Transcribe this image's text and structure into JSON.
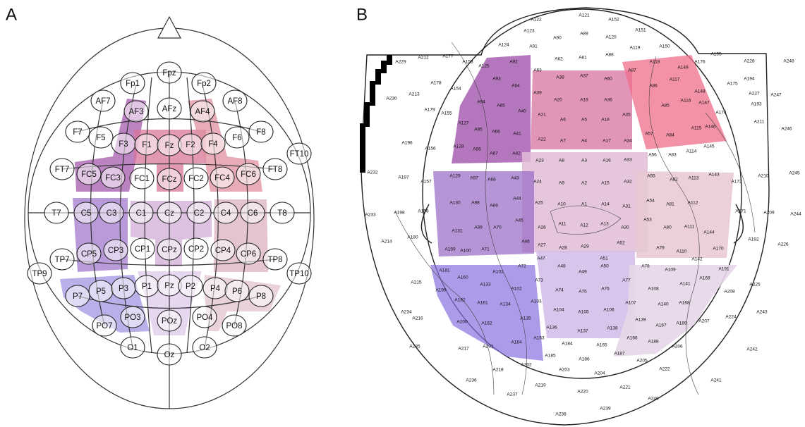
{
  "panel_a": {
    "label": "A",
    "electrodes": [
      "Fp1",
      "Fpz",
      "Fp2",
      "AF7",
      "AFz",
      "AF8",
      "AF3",
      "AF4",
      "F7",
      "F5",
      "F3",
      "F1",
      "Fz",
      "F2",
      "F4",
      "F6",
      "F8",
      "FT7",
      "FC5",
      "FC3",
      "FC1",
      "FCz",
      "FC2",
      "FC4",
      "FC6",
      "FT8",
      "FT10",
      "T7",
      "C5",
      "C3",
      "C1",
      "Cz",
      "C2",
      "C4",
      "C6",
      "T8",
      "TP7",
      "CP5",
      "CP3",
      "CP1",
      "CPz",
      "CP2",
      "CP4",
      "CP6",
      "TP8",
      "TP9",
      "TP10",
      "P7",
      "P5",
      "P3",
      "P1",
      "Pz",
      "P2",
      "P4",
      "P6",
      "P8",
      "PO7",
      "PO3",
      "POz",
      "PO4",
      "PO8",
      "O1",
      "Oz",
      "O2"
    ]
  },
  "panel_b": {
    "label": "B",
    "electrodes": [
      "A122",
      "A121",
      "A152",
      "A151",
      "A123",
      "A90",
      "A89",
      "A120",
      "A150",
      "A124",
      "A91",
      "A119",
      "A195",
      "A228",
      "A248",
      "A229",
      "A212",
      "A177",
      "A153",
      "A125",
      "A92",
      "A63",
      "A62",
      "A61",
      "A88",
      "A118",
      "A149",
      "A176",
      "A93",
      "A64",
      "A39",
      "A38",
      "A37",
      "A60",
      "A87",
      "A117",
      "A175",
      "A194",
      "A227",
      "A247",
      "A178",
      "A154",
      "A20",
      "A19",
      "A36",
      "A86",
      "A148",
      "A193",
      "A230",
      "A213",
      "A179",
      "A155",
      "A94",
      "A65",
      "A40",
      "A21",
      "A6",
      "A5",
      "A18",
      "A35",
      "A85",
      "A116",
      "A147",
      "A174",
      "A127",
      "A95",
      "A66",
      "A41",
      "A22",
      "A7",
      "A4",
      "A17",
      "A34",
      "A57",
      "A84",
      "A115",
      "A146",
      "A211",
      "A246",
      "A128",
      "A96",
      "A67",
      "A42",
      "A196",
      "A156",
      "A56",
      "A83",
      "A114",
      "A145",
      "A232",
      "A197",
      "A157",
      "A129",
      "A97",
      "A68",
      "A43",
      "A23",
      "A8",
      "A3",
      "A16",
      "A33",
      "A55",
      "A82",
      "A113",
      "A143",
      "A172",
      "A210",
      "A245",
      "A24",
      "A9",
      "A2",
      "A15",
      "A32",
      "A130",
      "A98",
      "A69",
      "A44",
      "A25",
      "A10",
      "A1",
      "A14",
      "A31",
      "A54",
      "A81",
      "A112",
      "A233",
      "A198",
      "A158",
      "A171",
      "A209",
      "A244",
      "A131",
      "A99",
      "A70",
      "A45",
      "A26",
      "A11",
      "A12",
      "A13",
      "A30",
      "A53",
      "A80",
      "A111",
      "A144",
      "A214",
      "A180",
      "A192",
      "A226",
      "A159",
      "A100",
      "A71",
      "A46",
      "A27",
      "A28",
      "A29",
      "A52",
      "A79",
      "A110",
      "A170",
      "A47",
      "A51",
      "A142",
      "A48",
      "A49",
      "A50",
      "A78",
      "A109",
      "A181",
      "A101",
      "A72",
      "A191",
      "A215",
      "A160",
      "A73",
      "A77",
      "A169",
      "A141",
      "A199",
      "A133",
      "A102",
      "A74",
      "A75",
      "A76",
      "A108",
      "A208",
      "A225",
      "A182",
      "A161",
      "A134",
      "A103",
      "A107",
      "A140",
      "A168",
      "A234",
      "A104",
      "A105",
      "A106",
      "A243",
      "A216",
      "A200",
      "A162",
      "A135",
      "A139",
      "A167",
      "A189",
      "A207",
      "A224",
      "A136",
      "A137",
      "A138",
      "A235",
      "A217",
      "A201",
      "A164",
      "A163",
      "A166",
      "A188",
      "A206",
      "A242",
      "A184",
      "A165",
      "A185",
      "A186",
      "A187",
      "A205",
      "A222",
      "A218",
      "A202",
      "A203",
      "A204",
      "A241",
      "A236",
      "A219",
      "A220",
      "A221",
      "A240",
      "A237",
      "A239",
      "A238"
    ]
  }
}
